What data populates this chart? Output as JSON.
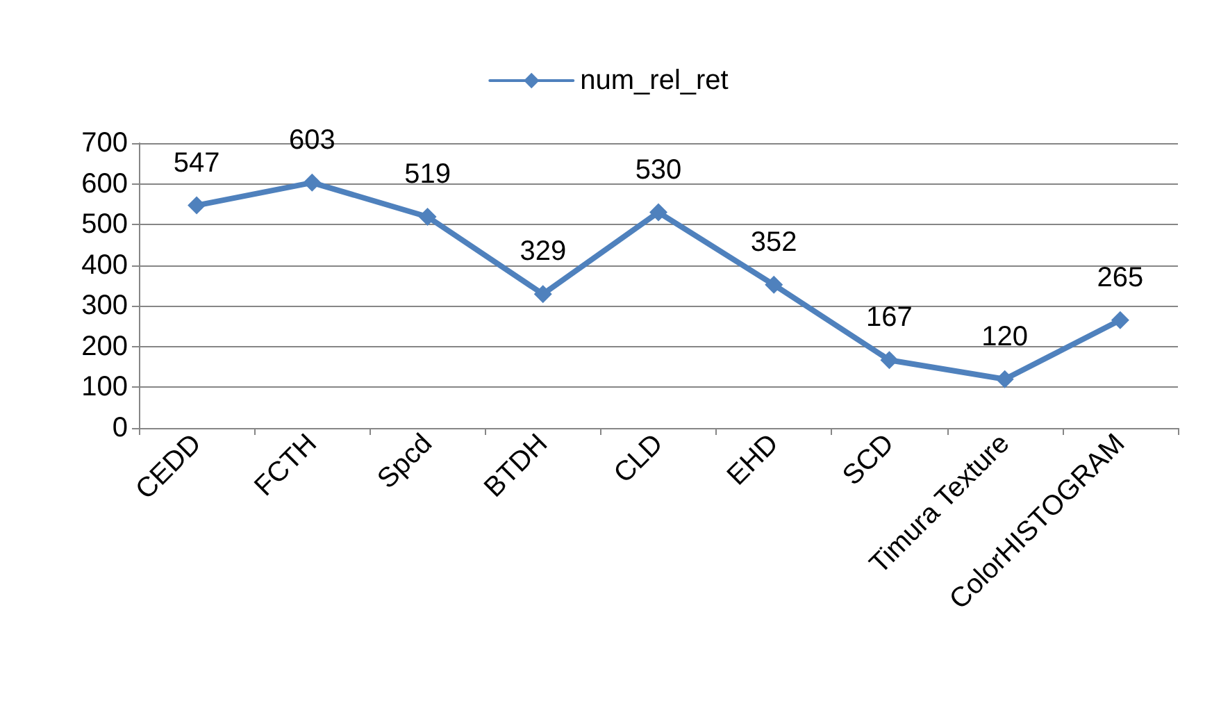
{
  "chart_data": {
    "type": "line",
    "categories": [
      "CEDD",
      "FCTH",
      "Spcd",
      "BTDH",
      "CLD",
      "EHD",
      "SCD",
      "Timura Texture",
      "ColorHISTOGRAM"
    ],
    "series": [
      {
        "name": "num_rel_ret",
        "color": "#4f81bd",
        "values": [
          547,
          603,
          519,
          329,
          530,
          352,
          167,
          120,
          265
        ]
      }
    ],
    "ylim": [
      0,
      700
    ],
    "yticks": [
      0,
      100,
      200,
      300,
      400,
      500,
      600,
      700
    ],
    "grid": "y",
    "legend": "top",
    "marker": "diamond",
    "line_style": "solid",
    "data_labels": true
  }
}
